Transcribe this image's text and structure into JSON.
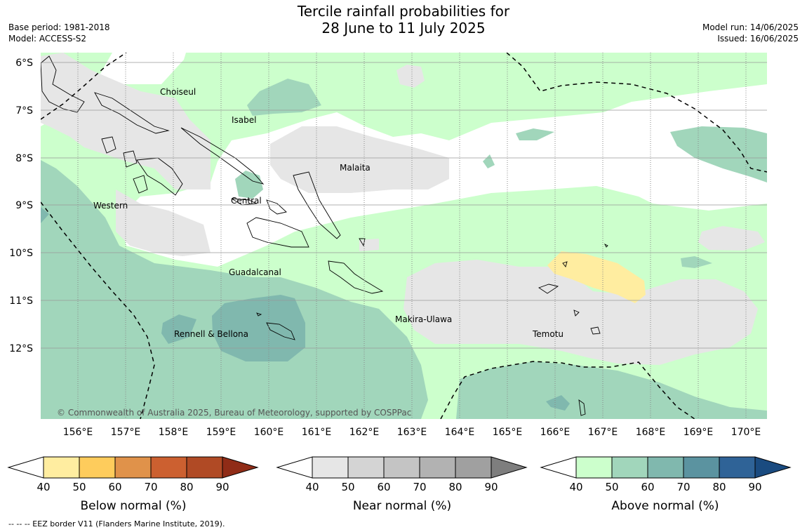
{
  "title": {
    "line1": "Tercile rainfall probabilities for",
    "line2": "28 June to 11 July 2025"
  },
  "meta_left": {
    "base_period": "Base period: 1981-2018",
    "model": "Model: ACCESS-S2"
  },
  "meta_right": {
    "model_run": "Model run: 14/06/2025",
    "issued": "Issued: 16/06/2025"
  },
  "map": {
    "lat_labels": [
      "6°S",
      "7°S",
      "8°S",
      "9°S",
      "10°S",
      "11°S",
      "12°S"
    ],
    "lon_labels": [
      "156°E",
      "157°E",
      "158°E",
      "159°E",
      "160°E",
      "161°E",
      "162°E",
      "163°E",
      "164°E",
      "165°E",
      "166°E",
      "167°E",
      "168°E",
      "169°E",
      "170°E"
    ],
    "provinces": [
      "Choiseul",
      "Isabel",
      "Malaita",
      "Central",
      "Western",
      "Guadalcanal",
      "Makira-Ulawa",
      "Rennell & Bellona",
      "Temotu"
    ],
    "copyright": "© Commonwealth of Australia 2025, Bureau of Meteorology, supported by COSPPac"
  },
  "colorbars": [
    {
      "label": "Below normal (%)",
      "ticks": [
        "40",
        "50",
        "60",
        "70",
        "80",
        "90"
      ],
      "colors": [
        "#ffffff",
        "#ffeda0",
        "#fecc5c",
        "#e0924a",
        "#cc6030",
        "#b04a25",
        "#902c17"
      ]
    },
    {
      "label": "Near normal (%)",
      "ticks": [
        "40",
        "50",
        "60",
        "70",
        "80",
        "90"
      ],
      "colors": [
        "#ffffff",
        "#e6e6e6",
        "#d4d4d4",
        "#c4c4c4",
        "#b2b2b2",
        "#a0a0a0",
        "#7e7e7e"
      ]
    },
    {
      "label": "Above normal (%)",
      "ticks": [
        "40",
        "50",
        "60",
        "70",
        "80",
        "90"
      ],
      "colors": [
        "#ffffff",
        "#ccffcc",
        "#a1d6bb",
        "#80b8ae",
        "#5b93a0",
        "#2f6397",
        "#1a4b80"
      ]
    }
  ],
  "footer": "-- -- -- EEZ border V11 (Flanders Marine Institute, 2019)."
}
